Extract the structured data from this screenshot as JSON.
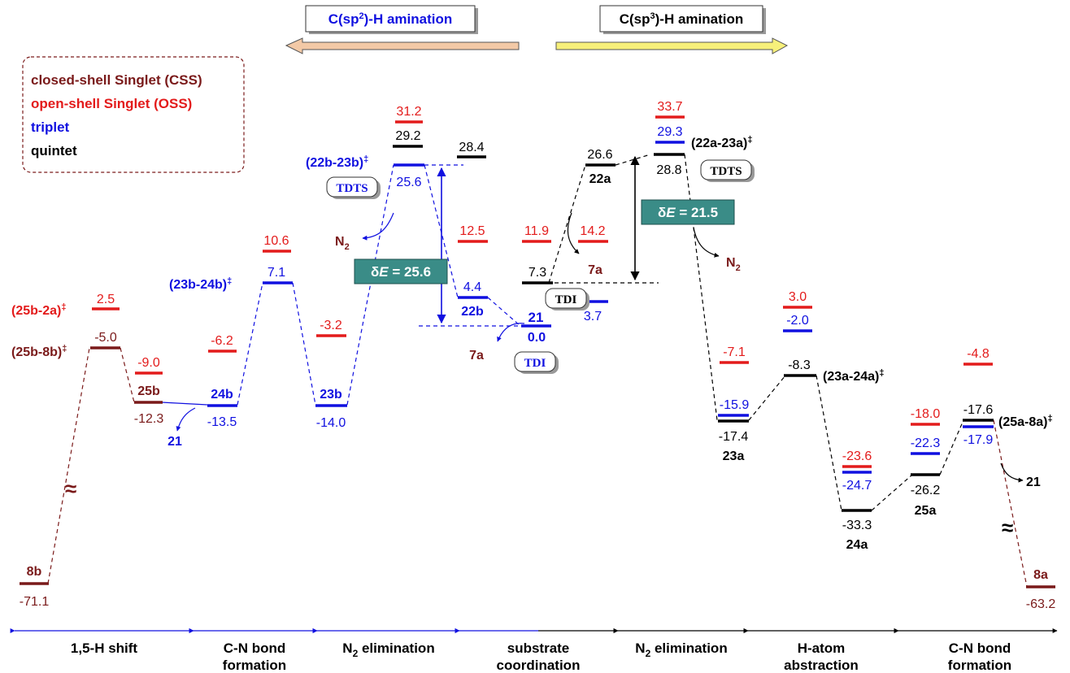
{
  "colors": {
    "css": "#7a1a1a",
    "oss": "#e31b1b",
    "triplet": "#1010e0",
    "quintet": "#000000",
    "teal": "#3a8c87",
    "arrow_left_fill": "#f3c9a6",
    "arrow_right_fill": "#f7f07a"
  },
  "header": {
    "sp2": "C(sp",
    "sp2_sup": "2",
    "sp2_tail": ")-H amination",
    "sp3": "C(sp",
    "sp3_sup": "3",
    "sp3_tail": ")-H amination"
  },
  "legend": {
    "css": "closed-shell Singlet (CSS)",
    "oss": "open-shell Singlet (OSS)",
    "triplet": "triplet",
    "quintet": "quintet"
  },
  "steps": {
    "s1": "1,5-H shift",
    "s2a": "C-N bond",
    "s2b": "formation",
    "s3_pre": "N",
    "s3_sub": "2",
    "s3_post": " elimination",
    "s4a": "substrate",
    "s4b": "coordination",
    "s5_pre": "N",
    "s5_sub": "2",
    "s5_post": " elimination",
    "s6a": "H-atom",
    "s6b": "abstraction",
    "s7a": "C-N bond",
    "s7b": "formation"
  },
  "species": {
    "ts_25b2a": "(25b-2a)",
    "ts_25b8b": "(25b-8b)",
    "ts_23b24b": "(23b-24b)",
    "ts_22b23b": "(22b-23b)",
    "ts_22a23a": "(22a-23a)",
    "ts_23a24a": "(23a-24a)",
    "ts_25a8a": "(25a-8a)",
    "dagger": "‡",
    "b8": "8b",
    "b25": "25b",
    "b24": "24b",
    "b23": "23b",
    "b22": "22b",
    "s21": "21",
    "a22": "22a",
    "a23": "23a",
    "a24": "24a",
    "a25": "25a",
    "a8": "8a",
    "r7a": "7a",
    "out21": "21",
    "n2_pre": "N",
    "n2_sub": "2"
  },
  "badges": {
    "tdts": "TDTS",
    "tdi": "TDI",
    "de_prefix": "δ",
    "de_e": "E",
    "de_left": " = 25.6",
    "de_right": " = 21.5"
  },
  "energies": {
    "e8b": "-71.1",
    "ts2a_oss": "2.5",
    "ts8b_css": "-5.0",
    "e25b_oss": "-9.0",
    "e25b_css": "-12.3",
    "e24b_oss": "-6.2",
    "e24b_t": "-13.5",
    "ts2324b_oss": "10.6",
    "ts2324b_t": "7.1",
    "e23b_oss": "-3.2",
    "e23b_t": "-14.0",
    "ts2223b_oss": "31.2",
    "ts2223b_q": "29.2",
    "ts2223b_t": "25.6",
    "e22b_q": "28.4",
    "e22b_oss": "12.5",
    "e22b_t": "4.4",
    "e21": "0.0",
    "e22a_sub_oss": "11.9",
    "e22a_sub_q": "7.3",
    "e22a_sub_oss2": "14.2",
    "e22a_sub_t": "3.7",
    "e22a_q": "26.6",
    "ts2223a_oss": "33.7",
    "ts2223a_t": "29.3",
    "ts2223a_q": "28.8",
    "e23a_oss": "-7.1",
    "e23a_t": "-15.9",
    "e23a_q": "-17.4",
    "ts2324a_oss": "3.0",
    "ts2324a_t": "-2.0",
    "ts2324a_q": "-8.3",
    "e24a_oss": "-23.6",
    "e24a_t": "-24.7",
    "e24a_q": "-33.3",
    "e25a_oss": "-18.0",
    "e25a_t": "-22.3",
    "e25a_q": "-26.2",
    "ts258a_oss": "-4.8",
    "ts258a_q": "-17.6",
    "ts258a_t": "-17.9",
    "e8a": "-63.2"
  }
}
